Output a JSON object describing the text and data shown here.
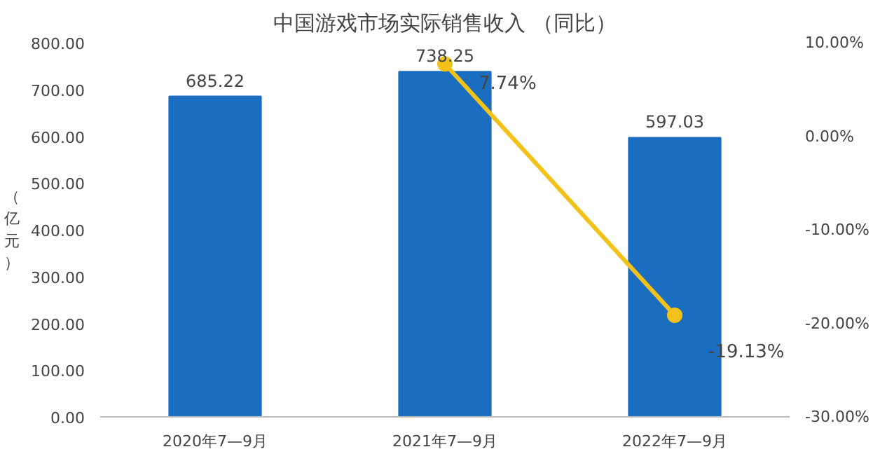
{
  "chart_data": {
    "type": "bar",
    "title": "中国游戏市场实际销售收入 （同比）",
    "ylabel": "（亿元）",
    "categories": [
      "2020年7—9月",
      "2021年7—9月",
      "2022年7—9月"
    ],
    "series": [
      {
        "color": "#1a6dbf",
        "values": [
          685.22,
          738.25,
          597.03
        ],
        "value_labels": [
          "685.22",
          "738.25",
          "597.03"
        ]
      },
      {
        "type": "line",
        "axis": "y2",
        "color": "#f2c21b",
        "values": [
          null,
          7.74,
          -19.13
        ],
        "value_labels": [
          null,
          "7.74%",
          "-19.13%"
        ],
        "marker": "circle"
      }
    ],
    "ylim": [
      0,
      800
    ],
    "yticks": [
      {
        "value": 0,
        "label": "0.00"
      },
      {
        "value": 100,
        "label": "100.00"
      },
      {
        "value": 200,
        "label": "200.00"
      },
      {
        "value": 300,
        "label": "300.00"
      },
      {
        "value": 400,
        "label": "400.00"
      },
      {
        "value": 500,
        "label": "500.00"
      },
      {
        "value": 600,
        "label": "600.00"
      },
      {
        "value": 700,
        "label": "700.00"
      },
      {
        "value": 800,
        "label": "800.00"
      }
    ],
    "y2lim": [
      -30,
      10
    ],
    "y2ticks": [
      {
        "value": -30,
        "label": "-30.00%"
      },
      {
        "value": -20,
        "label": "-20.00%"
      },
      {
        "value": -10,
        "label": "-10.00%"
      },
      {
        "value": 0,
        "label": "0.00%"
      },
      {
        "value": 10,
        "label": "10.00%"
      }
    ],
    "grid": false
  }
}
